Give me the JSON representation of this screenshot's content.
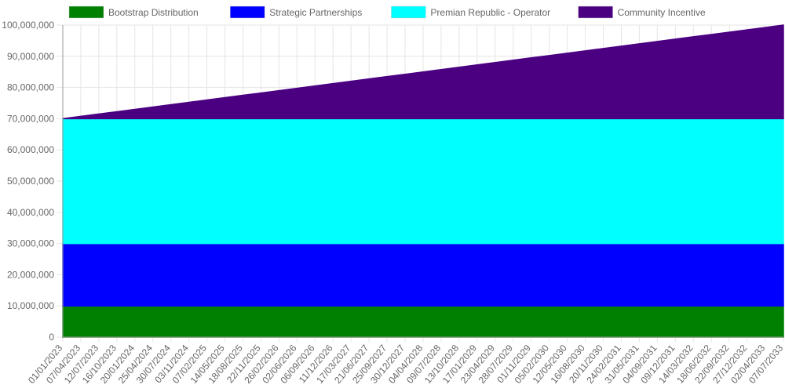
{
  "chart_data": {
    "type": "area",
    "stacked": true,
    "legend_position": "top",
    "grid": true,
    "ylim": [
      0,
      100000000
    ],
    "y_ticks": [
      "0",
      "10,000,000",
      "20,000,000",
      "30,000,000",
      "40,000,000",
      "50,000,000",
      "60,000,000",
      "70,000,000",
      "80,000,000",
      "90,000,000",
      "100,000,000"
    ],
    "x": [
      "01/01/2023",
      "07/04/2023",
      "12/07/2023",
      "16/10/2023",
      "20/01/2024",
      "25/04/2024",
      "30/07/2024",
      "03/11/2024",
      "07/02/2025",
      "14/05/2025",
      "18/08/2025",
      "22/11/2025",
      "26/02/2026",
      "02/06/2026",
      "06/09/2026",
      "11/12/2026",
      "17/03/2027",
      "21/06/2027",
      "25/09/2027",
      "30/12/2027",
      "04/04/2028",
      "09/07/2028",
      "13/10/2028",
      "17/01/2029",
      "23/04/2029",
      "28/07/2029",
      "01/11/2029",
      "05/02/2030",
      "12/05/2030",
      "16/08/2030",
      "20/11/2030",
      "24/02/2031",
      "31/05/2031",
      "04/09/2031",
      "09/12/2031",
      "14/03/2032",
      "18/06/2032",
      "22/09/2032",
      "27/12/2032",
      "02/04/2033",
      "07/07/2033"
    ],
    "series": [
      {
        "name": "Bootstrap Distribution",
        "color": "#008000",
        "start": 10000000,
        "end": 10000000
      },
      {
        "name": "Strategic Partnerships",
        "color": "#0000ff",
        "start": 20000000,
        "end": 20000000
      },
      {
        "name": "Premian Republic - Operator",
        "color": "#00ffff",
        "start": 40000000,
        "end": 40000000
      },
      {
        "name": "Community Incentive",
        "color": "#4b0082",
        "start": 0,
        "end": 30000000
      }
    ]
  }
}
